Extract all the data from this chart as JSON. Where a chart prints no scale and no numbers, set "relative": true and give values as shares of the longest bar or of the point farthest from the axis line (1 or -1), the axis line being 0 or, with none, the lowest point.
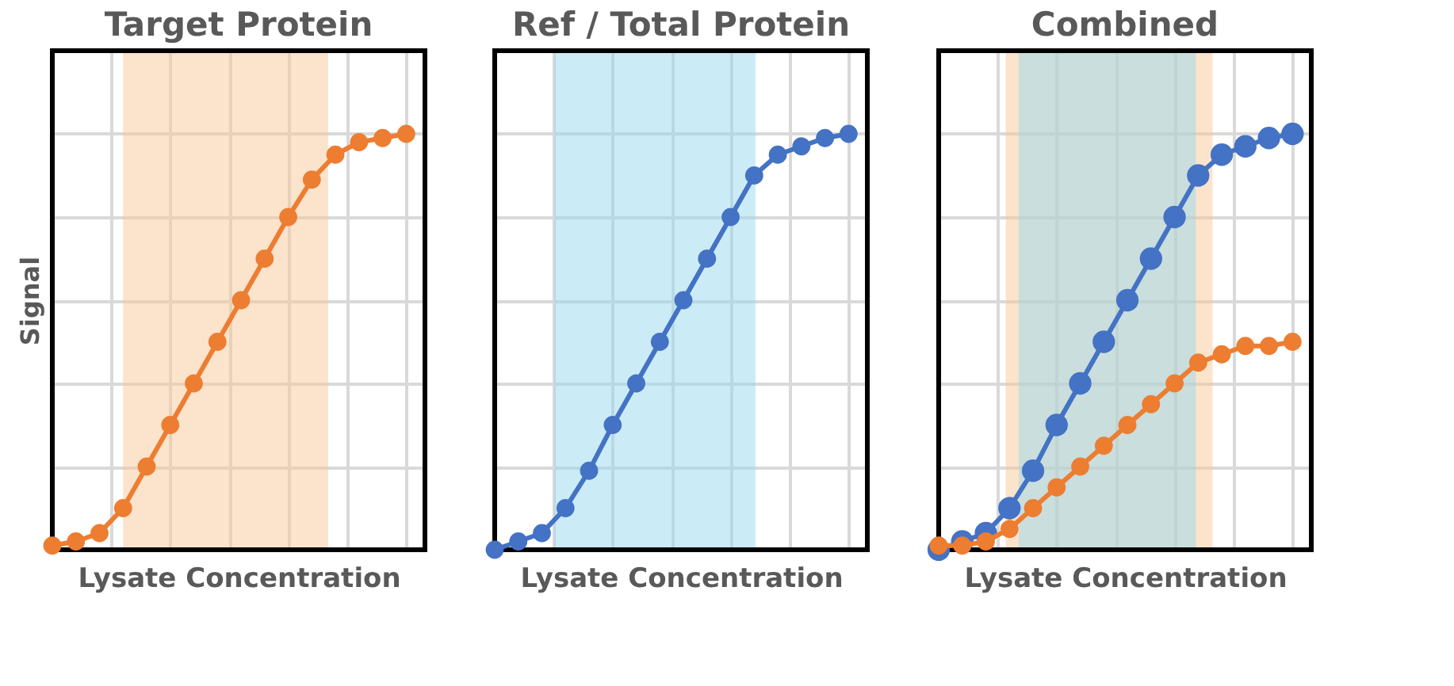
{
  "chart_data": [
    {
      "type": "line",
      "title": "Target Protein",
      "xlabel": "Lysate Concentration",
      "ylabel": "Signal",
      "relative": true,
      "marker": "circle",
      "line_style": "solid",
      "grid": true,
      "tick_labels": false,
      "categories": [
        null,
        null,
        null,
        null,
        null,
        null,
        null,
        null,
        null,
        null,
        null,
        null,
        null,
        null,
        null,
        null
      ],
      "series": [
        {
          "color": "#ed7d31",
          "values": [
            0.01,
            0.02,
            0.04,
            0.1,
            0.2,
            0.3,
            0.4,
            0.5,
            0.6,
            0.7,
            0.8,
            0.89,
            0.95,
            0.98,
            0.99,
            1
          ]
        }
      ]
    },
    {
      "type": "line",
      "title": "Ref / Total Protein",
      "xlabel": "Lysate Concentration",
      "relative": true,
      "marker": "circle",
      "line_style": "solid",
      "grid": true,
      "tick_labels": false,
      "categories": [
        null,
        null,
        null,
        null,
        null,
        null,
        null,
        null,
        null,
        null,
        null,
        null,
        null,
        null,
        null,
        null
      ],
      "series": [
        {
          "color": "#4472c4",
          "values": [
            0,
            0.02,
            0.04,
            0.1,
            0.19,
            0.3,
            0.4,
            0.5,
            0.6,
            0.7,
            0.8,
            0.9,
            0.95,
            0.97,
            0.99,
            1
          ]
        }
      ]
    },
    {
      "type": "line",
      "title": "Combined",
      "xlabel": "Lysate Concentration",
      "relative": true,
      "marker": "circle",
      "line_style": "solid",
      "grid": true,
      "tick_labels": false,
      "categories": [
        null,
        null,
        null,
        null,
        null,
        null,
        null,
        null,
        null,
        null,
        null,
        null,
        null,
        null,
        null,
        null
      ],
      "series": [
        {
          "color": "#4472c4",
          "values": [
            0,
            0.02,
            0.04,
            0.1,
            0.19,
            0.3,
            0.4,
            0.5,
            0.6,
            0.7,
            0.8,
            0.9,
            0.95,
            0.97,
            0.99,
            1
          ]
        },
        {
          "color": "#ed7d31",
          "values": [
            0.01,
            0.01,
            0.02,
            0.05,
            0.1,
            0.15,
            0.2,
            0.25,
            0.3,
            0.35,
            0.4,
            0.45,
            0.47,
            0.49,
            0.49,
            0.5
          ]
        }
      ]
    }
  ]
}
